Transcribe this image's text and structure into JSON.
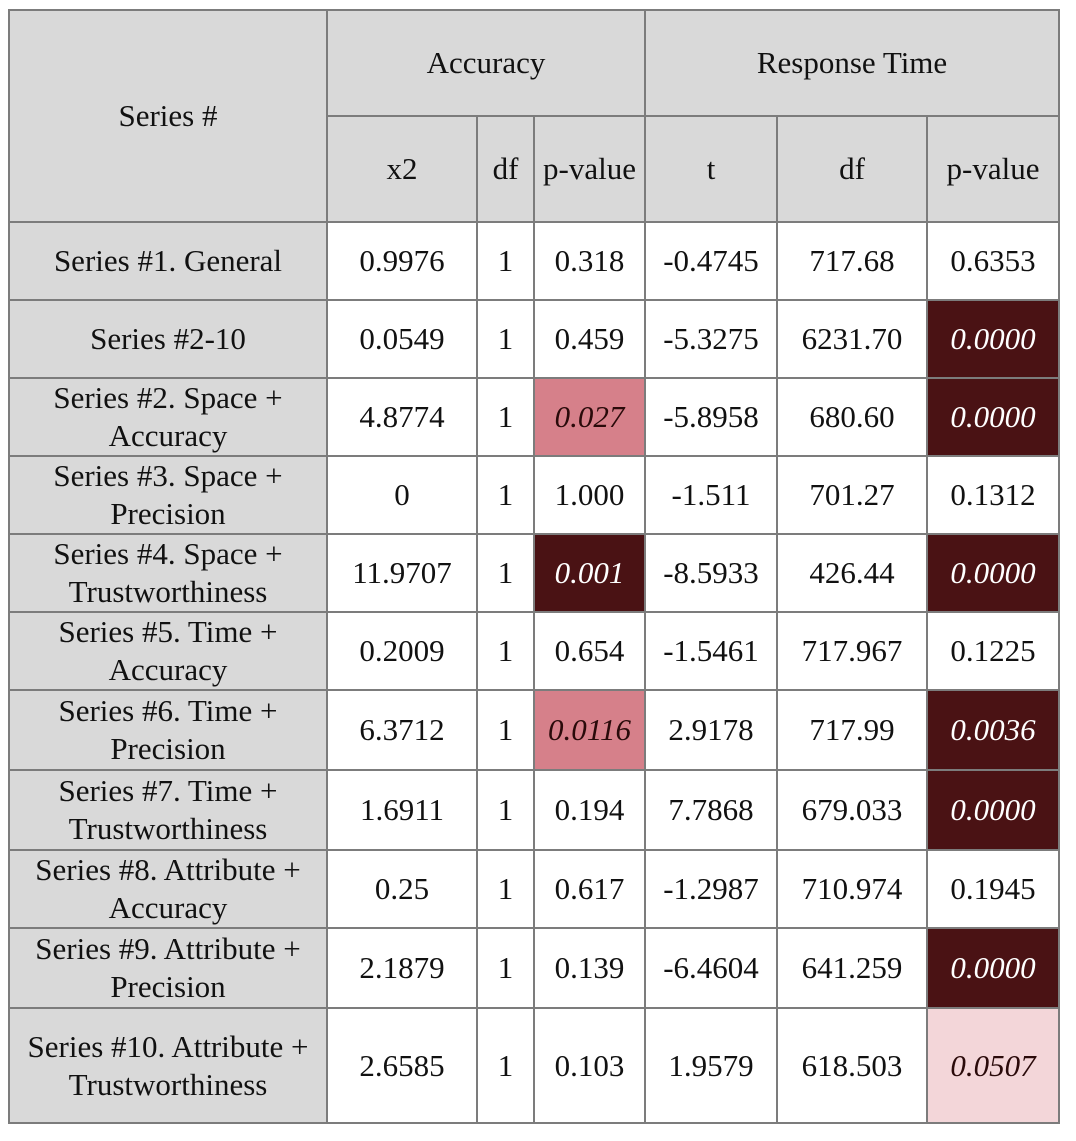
{
  "header": {
    "series_label": "Series #",
    "group_accuracy": "Accuracy",
    "group_response_time": "Response Time",
    "accuracy_columns": [
      "x2",
      "df",
      "p-value"
    ],
    "response_time_columns": [
      "t",
      "df",
      "p-value"
    ]
  },
  "legend_colors": {
    "strong_significance": "#4a1214",
    "significance": "#d6808a",
    "marginal_significance": "#f3d6d9"
  },
  "rows": [
    {
      "series": "Series #1. General",
      "x2": "0.9976",
      "df_acc": "1",
      "p_acc": "0.318",
      "t": "-0.4745",
      "df_rt": "717.68",
      "p_rt": "0.6353",
      "p_acc_style": "none",
      "p_rt_style": "none"
    },
    {
      "series": "Series #2-10",
      "x2": "0.0549",
      "df_acc": "1",
      "p_acc": "0.459",
      "t": "-5.3275",
      "df_rt": "6231.70",
      "p_rt": "0.0000",
      "p_acc_style": "none",
      "p_rt_style": "dark"
    },
    {
      "series": "Series #2. Space + Accuracy",
      "x2": "4.8774",
      "df_acc": "1",
      "p_acc": "0.027",
      "t": "-5.8958",
      "df_rt": "680.60",
      "p_rt": "0.0000",
      "p_acc_style": "mid",
      "p_rt_style": "dark"
    },
    {
      "series": "Series #3. Space + Precision",
      "x2": "0",
      "df_acc": "1",
      "p_acc": "1.000",
      "t": "-1.511",
      "df_rt": "701.27",
      "p_rt": "0.1312",
      "p_acc_style": "none",
      "p_rt_style": "none"
    },
    {
      "series": "Series #4. Space + Trustworthiness",
      "x2": "11.9707",
      "df_acc": "1",
      "p_acc": "0.001",
      "t": "-8.5933",
      "df_rt": "426.44",
      "p_rt": "0.0000",
      "p_acc_style": "dark",
      "p_rt_style": "dark"
    },
    {
      "series": "Series #5. Time + Accuracy",
      "x2": "0.2009",
      "df_acc": "1",
      "p_acc": "0.654",
      "t": "-1.5461",
      "df_rt": "717.967",
      "p_rt": "0.1225",
      "p_acc_style": "none",
      "p_rt_style": "none"
    },
    {
      "series": "Series #6. Time + Precision",
      "x2": "6.3712",
      "df_acc": "1",
      "p_acc": "0.0116",
      "t": "2.9178",
      "df_rt": "717.99",
      "p_rt": "0.0036",
      "p_acc_style": "mid",
      "p_rt_style": "dark"
    },
    {
      "series": "Series #7. Time + Trustworthiness",
      "x2": "1.6911",
      "df_acc": "1",
      "p_acc": "0.194",
      "t": "7.7868",
      "df_rt": "679.033",
      "p_rt": "0.0000",
      "p_acc_style": "none",
      "p_rt_style": "dark"
    },
    {
      "series": "Series #8. Attribute + Accuracy",
      "x2": "0.25",
      "df_acc": "1",
      "p_acc": "0.617",
      "t": "-1.2987",
      "df_rt": "710.974",
      "p_rt": "0.1945",
      "p_acc_style": "none",
      "p_rt_style": "none"
    },
    {
      "series": "Series #9. Attribute + Precision",
      "x2": "2.1879",
      "df_acc": "1",
      "p_acc": "0.139",
      "t": "-6.4604",
      "df_rt": "641.259",
      "p_rt": "0.0000",
      "p_acc_style": "none",
      "p_rt_style": "dark"
    },
    {
      "series": "Series #10. Attribute + Trustworthiness",
      "x2": "2.6585",
      "df_acc": "1",
      "p_acc": "0.103",
      "t": "1.9579",
      "df_rt": "618.503",
      "p_rt": "0.0507",
      "p_acc_style": "none",
      "p_rt_style": "light"
    }
  ]
}
